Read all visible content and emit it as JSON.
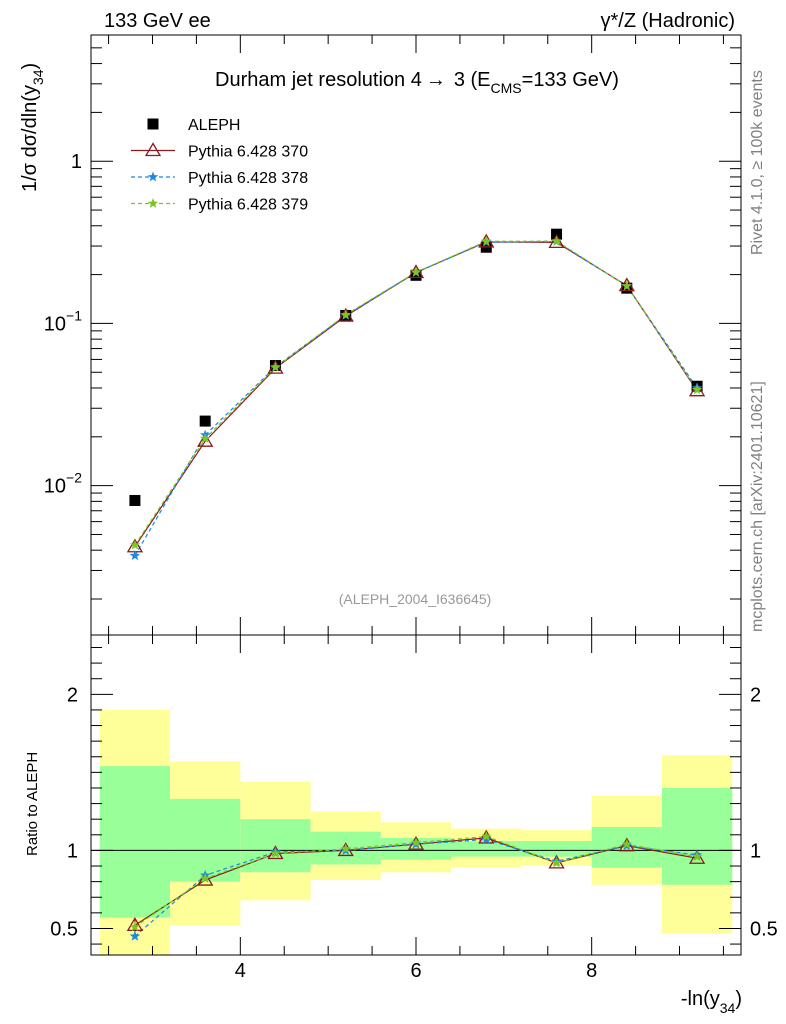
{
  "header": {
    "left": "133 GeV ee",
    "right": "γ*/Z (Hadronic)"
  },
  "side_labels": {
    "rivet": "Rivet 4.1.0, ≥ 100k events",
    "mcplots": "mcplots.cern.ch [arXiv:2401.10621]"
  },
  "chart_data": [
    {
      "type": "scatter",
      "panel": "main",
      "title_main": "Durham jet resolution 4",
      "title_arrow": "→",
      "title_rest": "3 (E",
      "title_sub": "CMS",
      "title_end": "=133 GeV)",
      "ylabel": "1/σ  dσ/dln(y",
      "ylabel_sub": "34",
      "ylabel_end": ")",
      "yscale": "log",
      "ylim": [
        0.0012,
        6.0
      ],
      "xlim": [
        2.3,
        9.7
      ],
      "yticks": [
        {
          "base": "10",
          "exp": "−2",
          "value": 0.01
        },
        {
          "base": "10",
          "exp": "−1",
          "value": 0.1
        },
        {
          "base": "1",
          "exp": "",
          "value": 1
        }
      ],
      "watermark": "(ALEPH_2004_I636645)",
      "legend_position": "top-left",
      "x": [
        2.8,
        3.6,
        4.4,
        5.2,
        6.0,
        6.8,
        7.6,
        8.4,
        9.2
      ],
      "series": [
        {
          "name": "ALEPH",
          "color": "#000000",
          "marker": "square",
          "values": [
            0.0081,
            0.025,
            0.055,
            0.112,
            0.198,
            0.295,
            0.355,
            0.165,
            0.041
          ]
        },
        {
          "name": "Pythia 6.428 370",
          "color": "#8b1a1a",
          "marker": "triangle",
          "values": [
            0.0042,
            0.0188,
            0.053,
            0.111,
            0.206,
            0.318,
            0.316,
            0.171,
            0.0385
          ]
        },
        {
          "name": "Pythia 6.428 378",
          "color": "#1e88e5",
          "marker": "star",
          "values": [
            0.0037,
            0.0205,
            0.054,
            0.112,
            0.206,
            0.317,
            0.32,
            0.17,
            0.04
          ]
        },
        {
          "name": "Pythia 6.428 379",
          "color": "#7cc61f",
          "marker": "star",
          "values": [
            0.0043,
            0.0195,
            0.0535,
            0.113,
            0.207,
            0.321,
            0.322,
            0.17,
            0.039
          ]
        }
      ]
    },
    {
      "type": "scatter",
      "panel": "ratio",
      "ylabel": "Ratio to ALEPH",
      "xlabel": "-ln(y",
      "xlabel_sub": "34",
      "xlabel_end": ")",
      "ylim": [
        0.33,
        2.38
      ],
      "xlim": [
        2.3,
        9.7
      ],
      "yticks": [
        "0.5",
        "1",
        "2"
      ],
      "ytick_values": [
        0.5,
        1,
        2
      ],
      "xticks": [
        "4",
        "6",
        "8"
      ],
      "xtick_values": [
        4,
        6,
        8
      ],
      "bands": [
        {
          "lo": 2.4,
          "hi": 3.2,
          "green": [
            0.57,
            1.54
          ],
          "yellow": [
            0.33,
            1.9
          ]
        },
        {
          "lo": 3.2,
          "hi": 4.0,
          "green": [
            0.8,
            1.33
          ],
          "yellow": [
            0.52,
            1.57
          ]
        },
        {
          "lo": 4.0,
          "hi": 4.8,
          "green": [
            0.86,
            1.2
          ],
          "yellow": [
            0.68,
            1.44
          ]
        },
        {
          "lo": 4.8,
          "hi": 5.6,
          "green": [
            0.91,
            1.12
          ],
          "yellow": [
            0.81,
            1.25
          ]
        },
        {
          "lo": 5.6,
          "hi": 6.4,
          "green": [
            0.94,
            1.08
          ],
          "yellow": [
            0.86,
            1.18
          ]
        },
        {
          "lo": 6.4,
          "hi": 7.2,
          "green": [
            0.96,
            1.06
          ],
          "yellow": [
            0.89,
            1.14
          ]
        },
        {
          "lo": 7.2,
          "hi": 8.0,
          "green": [
            0.96,
            1.06
          ],
          "yellow": [
            0.9,
            1.13
          ]
        },
        {
          "lo": 8.0,
          "hi": 8.8,
          "green": [
            0.89,
            1.15
          ],
          "yellow": [
            0.78,
            1.35
          ]
        },
        {
          "lo": 8.8,
          "hi": 9.6,
          "green": [
            0.78,
            1.4
          ],
          "yellow": [
            0.47,
            1.61
          ]
        }
      ],
      "x": [
        2.8,
        3.6,
        4.4,
        5.2,
        6.0,
        6.8,
        7.6,
        8.4,
        9.2
      ],
      "series": [
        {
          "name": "Pythia 6.428 370",
          "color": "#8b1a1a",
          "marker": "triangle",
          "values": [
            0.52,
            0.81,
            0.98,
            1.0,
            1.04,
            1.08,
            0.92,
            1.03,
            0.95
          ]
        },
        {
          "name": "Pythia 6.428 378",
          "color": "#1e88e5",
          "marker": "star",
          "values": [
            0.45,
            0.84,
            0.99,
            1.0,
            1.04,
            1.07,
            0.93,
            1.03,
            0.97
          ]
        },
        {
          "name": "Pythia 6.428 379",
          "color": "#7cc61f",
          "marker": "star",
          "values": [
            0.51,
            0.82,
            0.98,
            1.01,
            1.05,
            1.09,
            0.92,
            1.04,
            0.96
          ]
        }
      ]
    }
  ]
}
